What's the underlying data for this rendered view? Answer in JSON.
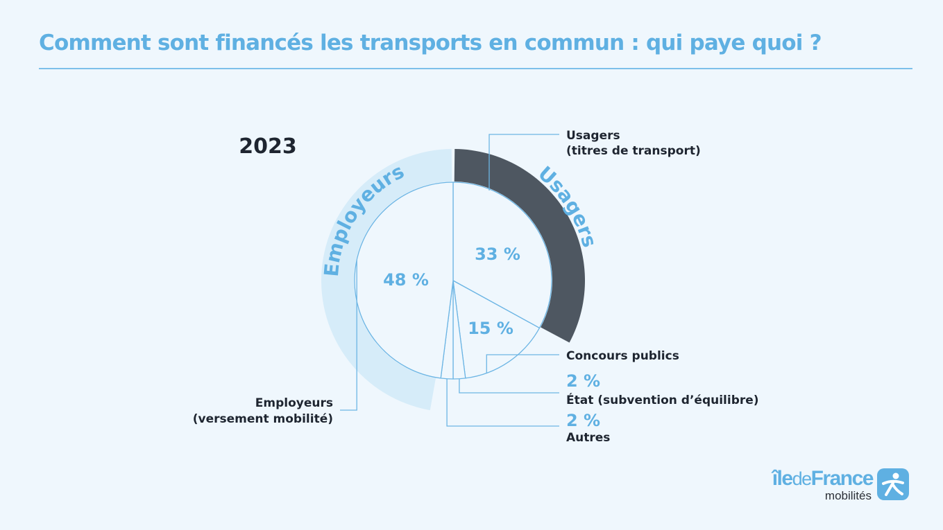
{
  "title": "Comment sont financés les transports en commun : qui paye quoi ?",
  "chart_data": {
    "type": "pie",
    "title": "Comment sont financés les transports en commun : qui paye quoi ?",
    "year": "2023",
    "slices": [
      {
        "key": "usagers",
        "label": "Usagers (titres de transport)",
        "value": 33,
        "value_label": "33 %"
      },
      {
        "key": "concours",
        "label": "Concours publics",
        "value": 15,
        "value_label": "15 %"
      },
      {
        "key": "etat",
        "label": "État (subvention d’équilibre)",
        "value": 2,
        "value_label": "2 %"
      },
      {
        "key": "autres",
        "label": "Autres",
        "value": 2,
        "value_label": "2 %"
      },
      {
        "key": "employeurs",
        "label": "Employeurs (versement mobilité)",
        "value": 48,
        "value_label": "48 %"
      }
    ],
    "outer_groups": [
      {
        "label": "Usagers",
        "covers": [
          "usagers"
        ],
        "color": "#4e5761"
      },
      {
        "label": "Employeurs",
        "covers": [
          "employeurs"
        ],
        "color": "#d6ecf9"
      }
    ],
    "callouts": {
      "usagers": [
        "Usagers",
        "(titres de transport)"
      ],
      "concours": [
        "Concours publics"
      ],
      "etat_pct": "2 %",
      "etat": [
        "État (subvention d’équilibre)"
      ],
      "autres_pct": "2 %",
      "autres": [
        "Autres"
      ],
      "employeurs": [
        "Employeurs",
        "(versement mobilité)"
      ]
    },
    "colors": {
      "accent": "#5fb0e2",
      "line": "#6cb5e4",
      "usagers_band": "#4e5761",
      "employeurs_band": "#d6ecf9",
      "text_dark": "#1e2530"
    }
  },
  "logo": {
    "brand_bold_1": "île",
    "brand_thin": "de",
    "brand_bold_2": "France",
    "subtitle": "mobilités",
    "icon": "pedestrian-icon"
  }
}
